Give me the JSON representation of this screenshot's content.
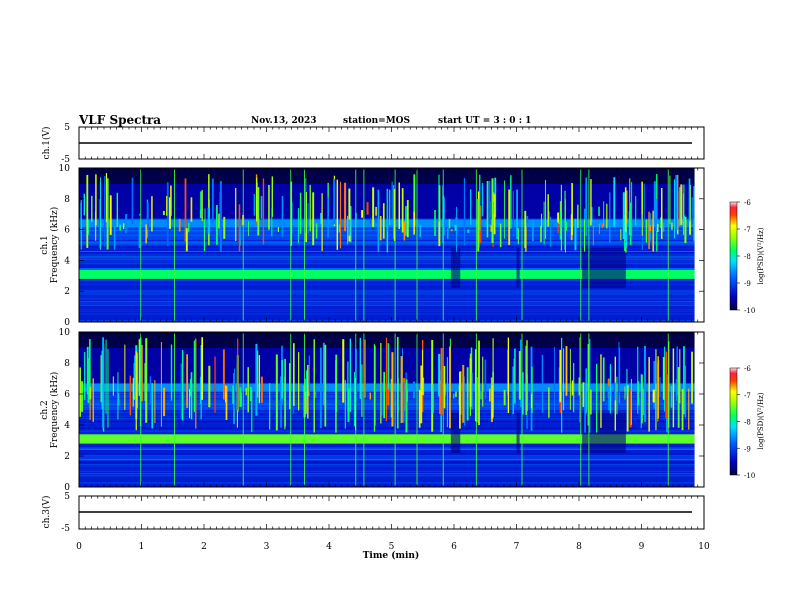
{
  "header": {
    "title": "VLF Spectra",
    "date": "Nov.13, 2023",
    "station": "station=MOS",
    "start": "start  UT =  3 : 0  : 1"
  },
  "chart_data": {
    "type": "heatmap",
    "title": "VLF Spectra",
    "xlabel": "Time  (min)",
    "xlim": [
      0,
      10
    ],
    "xticks": [
      "0",
      "1",
      "2",
      "3",
      "4",
      "5",
      "6",
      "7",
      "8",
      "9",
      "10"
    ],
    "panels": [
      {
        "name": "ch.1(V)",
        "type": "line",
        "ylabel": "ch.1(V)",
        "ylim": [
          -5,
          5
        ],
        "yticks": [
          "5",
          "-5"
        ],
        "level": 0
      },
      {
        "name": "ch.1",
        "type": "heatmap",
        "ylabel": "ch.1\nFrequency (kHz)",
        "ylabel_lines": [
          "ch.1",
          "Frequency (kHz)"
        ],
        "ylim": [
          0,
          10
        ],
        "yticks": [
          "0",
          "2",
          "4",
          "6",
          "8",
          "10"
        ],
        "colorbar": {
          "label": "log(PSD)(V²/Hz)",
          "ticks": [
            "-6",
            "-7",
            "-8",
            "-9",
            "-10"
          ],
          "range": [
            -10,
            -6
          ]
        }
      },
      {
        "name": "ch.2",
        "type": "heatmap",
        "ylabel": "ch.2\nFrequency (kHz)",
        "ylabel_lines": [
          "ch.2",
          "Frequency (kHz)"
        ],
        "ylim": [
          0,
          10
        ],
        "yticks": [
          "0",
          "2",
          "4",
          "6",
          "8",
          "10"
        ],
        "colorbar": {
          "label": "log(PSD)(V²/Hz)",
          "ticks": [
            "-6",
            "-7",
            "-8",
            "-9",
            "-10"
          ],
          "range": [
            -10,
            -6
          ]
        }
      },
      {
        "name": "ch.3(V)",
        "type": "line",
        "ylabel": "ch.3(V)",
        "ylim": [
          -5,
          5
        ],
        "yticks": [
          "5",
          "-5"
        ],
        "level": 0
      }
    ],
    "data_end_min": 9.85,
    "bands_khz": [
      {
        "f": 3.1,
        "level": -7.8,
        "width": 0.6
      },
      {
        "f": 6.4,
        "level": -8.6,
        "width": 0.5
      },
      {
        "f": 5.8,
        "level": -9.0,
        "width": 0.1
      },
      {
        "f": 1.9,
        "level": -9.1,
        "width": 0.2
      },
      {
        "f": 0.8,
        "level": -9.2,
        "width": 0.1
      }
    ],
    "colors": {
      "background": "#000020",
      "low": "#0000a0",
      "mid": "#00a0ff",
      "cyan": "#00ffff",
      "green": "#00ff40",
      "yellow": "#ffff00",
      "orange": "#ff8000",
      "red": "#ff0000",
      "pink": "#ffc0c0"
    }
  }
}
